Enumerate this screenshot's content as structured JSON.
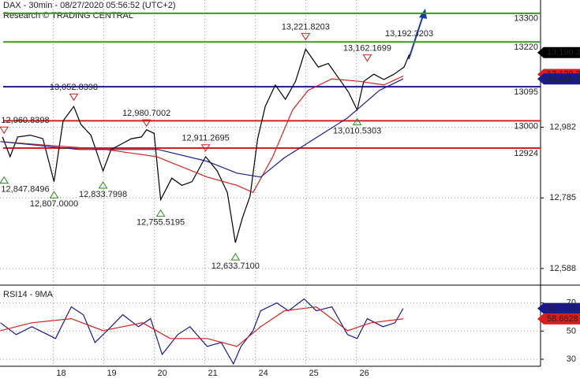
{
  "chart_data": [
    {
      "type": "line",
      "title": "DAX - 30min - 08/27/2020 05:56:52 (UTC+2)",
      "subtitle": "Research © TRADING CENTRAL",
      "xlim": [
        -0.1,
        10.6
      ],
      "xticks": [
        {
          "value": 1,
          "label": "18"
        },
        {
          "value": 2,
          "label": "19"
        },
        {
          "value": 3,
          "label": "20"
        },
        {
          "value": 4,
          "label": "21"
        },
        {
          "value": 5,
          "label": "24"
        },
        {
          "value": 6,
          "label": "25"
        },
        {
          "value": 7,
          "label": "26"
        }
      ],
      "ylim": [
        12546,
        13337
      ],
      "yticks": [
        {
          "value": 12588,
          "label": "12,588"
        },
        {
          "value": 12785,
          "label": "12,785"
        },
        {
          "value": 12982,
          "label": "12,982"
        }
      ],
      "grid": true,
      "x": [
        -0.05,
        0.1,
        0.25,
        0.5,
        0.75,
        0.97,
        1.15,
        1.36,
        1.5,
        1.7,
        1.94,
        2.1,
        2.3,
        2.5,
        2.7,
        2.8,
        2.95,
        3.08,
        3.3,
        3.5,
        3.7,
        3.97,
        4.2,
        4.4,
        4.56,
        4.7,
        4.85,
        5.0,
        5.15,
        5.35,
        5.55,
        5.75,
        5.95,
        6.2,
        6.4,
        6.6,
        6.8,
        6.97,
        7.1,
        7.3,
        7.5,
        7.7,
        7.9,
        8.0
      ],
      "series": [
        {
          "color": "#000000",
          "values": [
            12955,
            12900,
            12955,
            12960,
            12950,
            12830,
            13000,
            13040,
            12990,
            12960,
            12860,
            12920,
            12935,
            12950,
            12955,
            12975,
            12965,
            12780,
            12840,
            12820,
            12830,
            12900,
            12860,
            12800,
            12660,
            12730,
            12790,
            12950,
            13040,
            13100,
            13060,
            13110,
            13200,
            13150,
            13160,
            13120,
            13080,
            13030,
            13110,
            13130,
            13115,
            13130,
            13150,
            13185
          ]
        },
        {
          "color": "#d42020",
          "x": [
            -0.09,
            1,
            2,
            3,
            4,
            4.59,
            4.91,
            5.3,
            5.69,
            6.0,
            6.47,
            7.02,
            7.5,
            7.88
          ],
          "values": [
            12942,
            12930,
            12920,
            12900,
            12843,
            12820,
            12800,
            12900,
            13030,
            13085,
            13117,
            13110,
            13100,
            13125
          ]
        },
        {
          "color": "#1a1a8c",
          "x": [
            -0.09,
            1.47,
            3.03,
            4,
            4.59,
            5.06,
            5.53,
            6.16,
            6.78,
            7.41,
            7.88
          ],
          "values": [
            12942,
            12920,
            12920,
            12887,
            12854,
            12843,
            12897,
            12953,
            13008,
            13085,
            13117
          ]
        }
      ],
      "levels": [
        {
          "value": 13300,
          "color": "#3a9a1a"
        },
        {
          "value": 13220,
          "color": "#3a9a1a"
        },
        {
          "value": 13095,
          "color": "#1a1a8c"
        },
        {
          "value": 13000,
          "color": "#d42020"
        },
        {
          "value": 12924,
          "color": "#d42020"
        }
      ],
      "annotations": [
        {
          "label": "12,960.8398",
          "value": 12960.8398,
          "x": -0.02,
          "kind": "high"
        },
        {
          "label": "12,847.8496",
          "value": 12847.8496,
          "x": -0.02,
          "kind": "low"
        },
        {
          "label": "13,052.8398",
          "value": 13052.8398,
          "x": 1.36,
          "kind": "high"
        },
        {
          "label": "12,807.0000",
          "value": 12807.0,
          "x": 0.97,
          "kind": "low"
        },
        {
          "label": "12,833.7998",
          "value": 12833.7998,
          "x": 1.94,
          "kind": "low"
        },
        {
          "label": "12,980.7002",
          "value": 12980.7002,
          "x": 2.8,
          "kind": "high"
        },
        {
          "label": "12,755.5195",
          "value": 12755.5195,
          "x": 3.08,
          "kind": "low"
        },
        {
          "label": "12,911.2695",
          "value": 12911.2695,
          "x": 3.97,
          "kind": "high"
        },
        {
          "label": "12,633.7100",
          "value": 12633.71,
          "x": 4.56,
          "kind": "low"
        },
        {
          "label": "13,221.8203",
          "value": 13221.8203,
          "x": 5.95,
          "kind": "high"
        },
        {
          "label": "13,010.5303",
          "value": 13010.5303,
          "x": 6.97,
          "kind": "low"
        },
        {
          "label": "13,162.1699",
          "value": 13162.1699,
          "x": 7.17,
          "kind": "high"
        },
        {
          "label": "13,192.3203",
          "value": 13192.3203,
          "x": 8.0,
          "kind": "last"
        }
      ],
      "tags": [
        {
          "label": "13,190.2",
          "value": 13190.2,
          "color": "#000000"
        },
        {
          "label": "13,129.3",
          "value": 13129.3,
          "color": "#d42020"
        },
        {
          "label": "13,116.7",
          "value": 13116.7,
          "color": "#1a1a8c"
        }
      ]
    },
    {
      "type": "line",
      "title": "RSI14 - 9MA",
      "xlim": [
        -0.1,
        10.6
      ],
      "xticks": [
        {
          "value": 1,
          "label": "18"
        },
        {
          "value": 2,
          "label": "19"
        },
        {
          "value": 3,
          "label": "20"
        },
        {
          "value": 4,
          "label": "21"
        },
        {
          "value": 5,
          "label": "24"
        },
        {
          "value": 6,
          "label": "25"
        },
        {
          "value": 7,
          "label": "26"
        }
      ],
      "ylim": [
        25,
        81
      ],
      "yticks": [
        30,
        50,
        70
      ],
      "grid": true,
      "series": [
        {
          "color": "#1a1a8c",
          "x": [
            -0.09,
            0.22,
            0.53,
            1,
            1.31,
            1.55,
            1.78,
            2.02,
            2.33,
            2.64,
            2.88,
            3.11,
            3.42,
            3.66,
            4,
            4.28,
            4.52,
            4.67,
            4.91,
            5.06,
            5.38,
            5.61,
            5.92,
            6.16,
            6.47,
            6.78,
            6.97,
            7.17,
            7.48,
            7.72,
            7.88
          ],
          "values": [
            55.9,
            47.5,
            53.1,
            44.7,
            67.2,
            61.6,
            41.9,
            50.3,
            61.6,
            53.1,
            58.8,
            33.4,
            47.5,
            53.1,
            39.1,
            41.9,
            26.7,
            39.1,
            50.3,
            64.4,
            70.0,
            64.4,
            72.9,
            64.4,
            67.2,
            47.5,
            44.7,
            58.8,
            53.1,
            55.9,
            66.1
          ]
        },
        {
          "color": "#d42020",
          "x": [
            -0.09,
            0.53,
            1.31,
            1.94,
            2.72,
            3.27,
            4,
            4.59,
            5.06,
            5.53,
            6.16,
            6.78,
            7.25,
            7.88
          ],
          "values": [
            50.3,
            55.9,
            58.8,
            50.3,
            55.9,
            44.7,
            44.7,
            39.1,
            53.1,
            64.4,
            67.2,
            50.3,
            55.9,
            58.7
          ]
        }
      ],
      "tags": [
        {
          "label": "66.0786",
          "value": 66.0786,
          "color": "#1a1a8c"
        },
        {
          "label": "58.6628",
          "value": 58.6628,
          "color": "#d42020"
        }
      ]
    }
  ]
}
